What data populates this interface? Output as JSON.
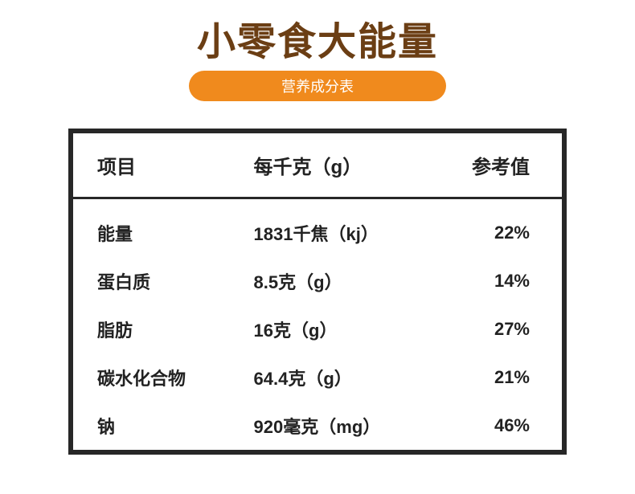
{
  "colors": {
    "title": "#6b3e14",
    "pill_bg": "#f08a1d",
    "pill_text": "#ffffff",
    "table_border": "#272727",
    "header_divider": "#272727",
    "text": "#222222",
    "background": "#ffffff"
  },
  "header": {
    "title": "小零食大能量",
    "subtitle": "营养成分表"
  },
  "table": {
    "columns": [
      "项目",
      "每千克（g）",
      "参考值"
    ],
    "rows": [
      [
        "能量",
        "1831千焦（kj）",
        "22%"
      ],
      [
        "蛋白质",
        "8.5克（g）",
        "14%"
      ],
      [
        "脂肪",
        "16克（g）",
        "27%"
      ],
      [
        "碳水化合物",
        "64.4克（g）",
        "21%"
      ],
      [
        "钠",
        "920毫克（mg）",
        "46%"
      ]
    ]
  }
}
